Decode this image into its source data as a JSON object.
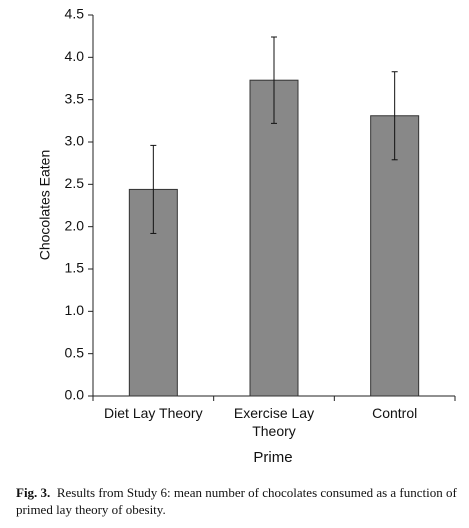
{
  "chart_data": {
    "type": "bar",
    "categories": [
      "Diet Lay Theory",
      "Exercise Lay Theory",
      "Control"
    ],
    "values": [
      2.44,
      3.73,
      3.31
    ],
    "errors": [
      0.52,
      0.51,
      0.52
    ],
    "color": "#888888",
    "ylabel": "Chocolates Eaten",
    "xlabel": "Prime",
    "ylim": [
      0,
      4.5
    ],
    "yticks": [
      {
        "value": 0,
        "label": "0.0"
      },
      0.5,
      {
        "value": 1,
        "label": "1.0"
      },
      1.5,
      {
        "value": 2,
        "label": "2.0"
      },
      2.5,
      {
        "value": 3,
        "label": "3.0"
      },
      3.5,
      {
        "value": 4,
        "label": "4.0"
      },
      4.5
    ]
  },
  "caption": {
    "label": "Fig. 3.",
    "text": "Results from Study 6: mean number of chocolates consumed as a function of primed lay theory of obesity."
  }
}
